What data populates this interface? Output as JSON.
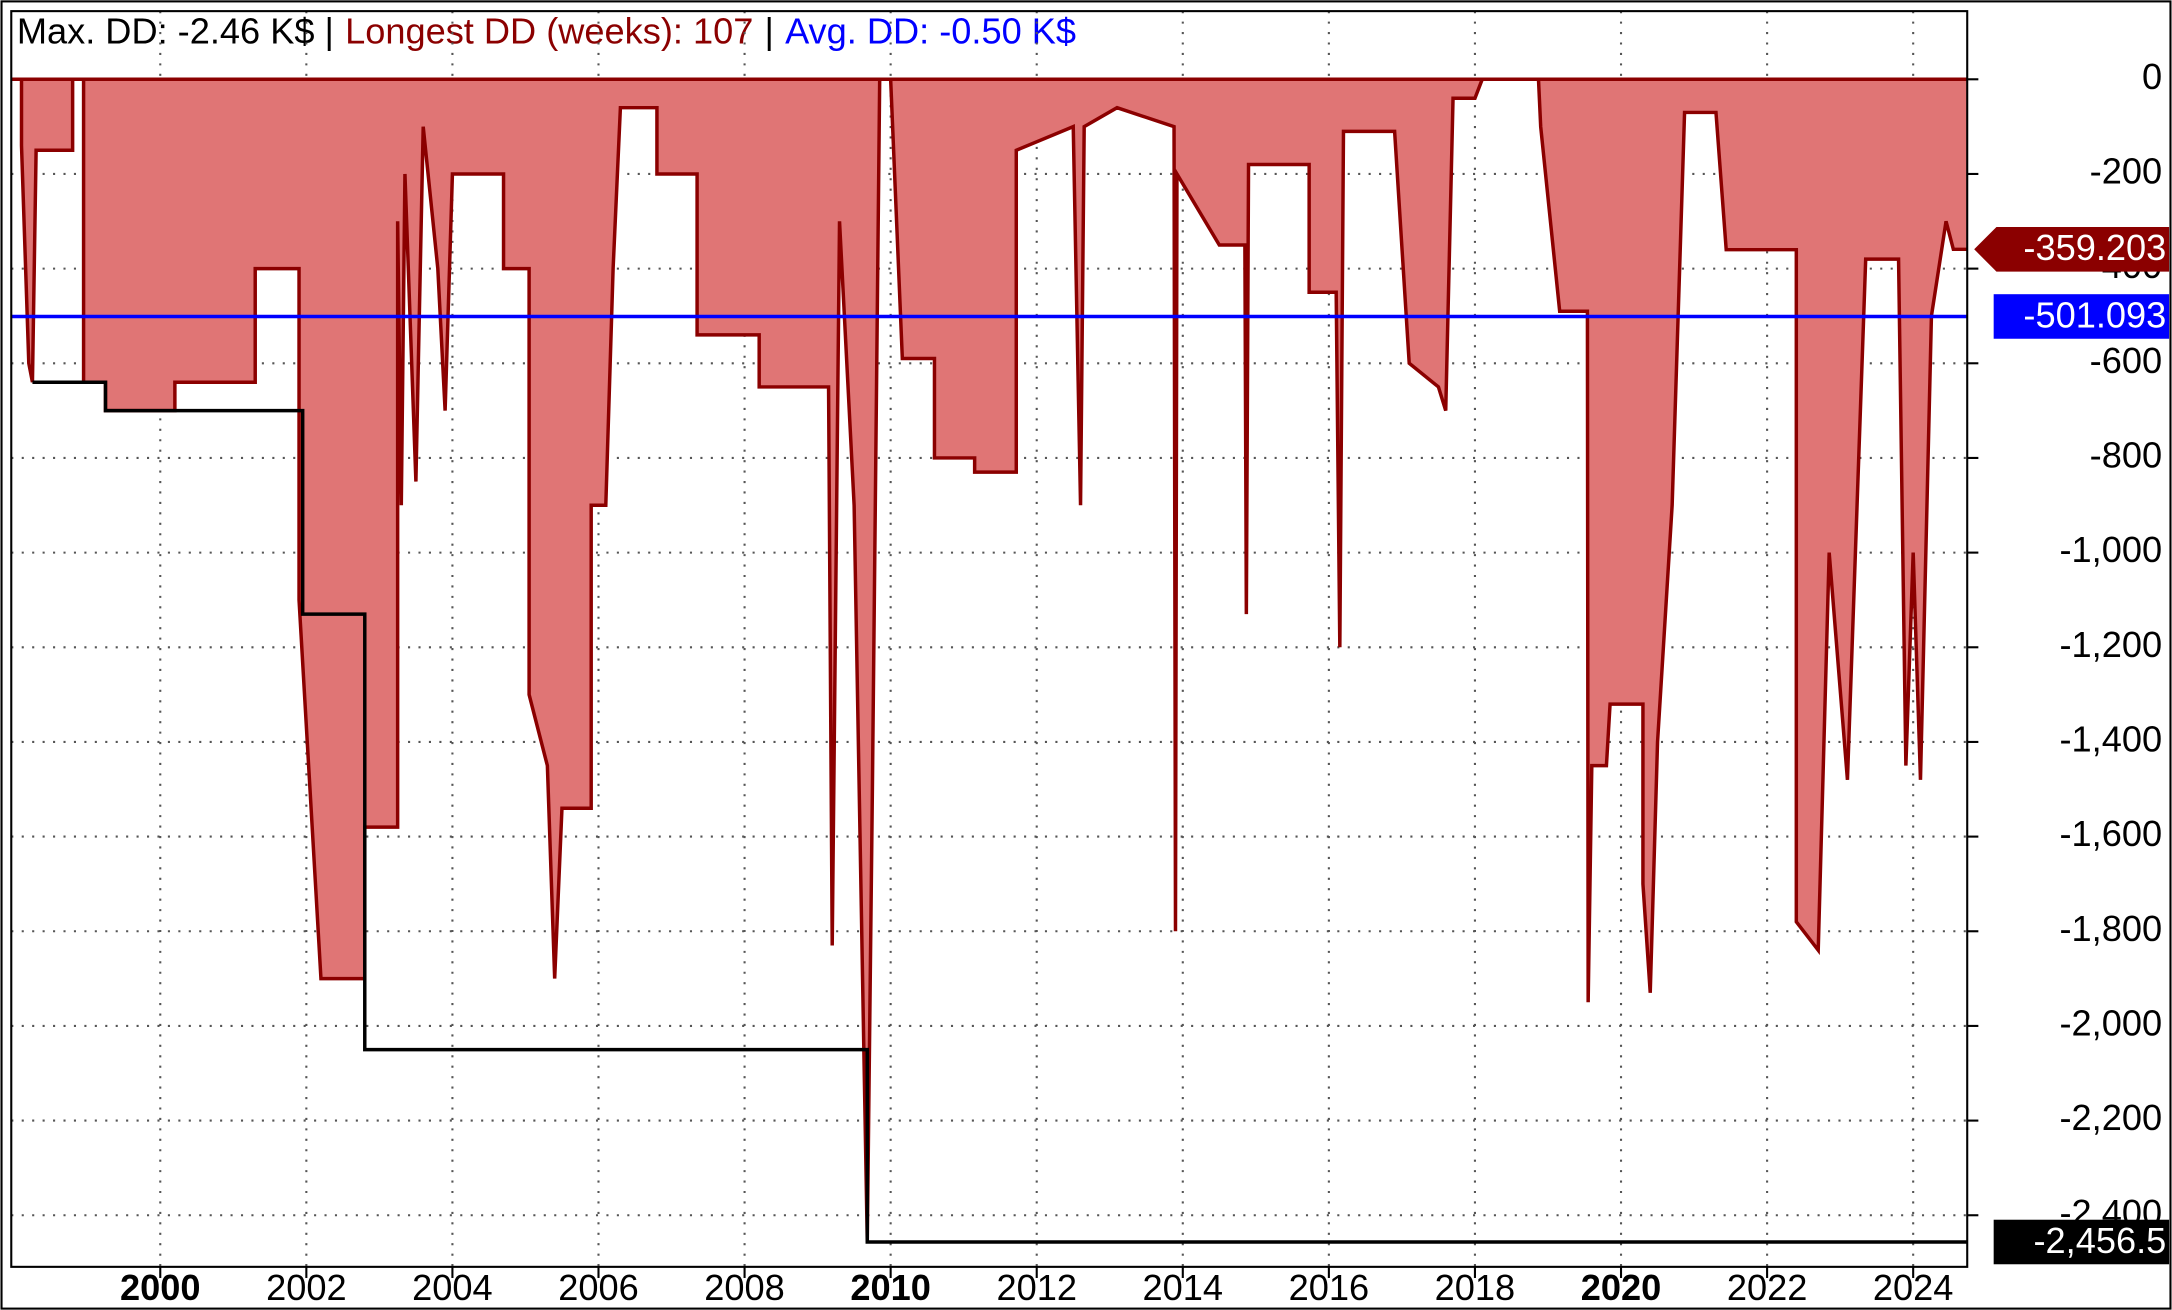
{
  "chart_data": {
    "type": "area",
    "title_parts": [
      {
        "text": "Max. DD: -2.46 K$ |",
        "color": "#000000"
      },
      {
        "text": "Longest DD (weeks): 107",
        "color": "#8b0000"
      },
      {
        "text": "|",
        "color": "#000000"
      },
      {
        "text": "Avg. DD: -0.50 K$",
        "color": "#0000ff"
      }
    ],
    "xlim": [
      1997.96,
      2024.74
    ],
    "xticks": [
      2000,
      2002,
      2004,
      2006,
      2008,
      2010,
      2012,
      2014,
      2016,
      2018,
      2020,
      2022,
      2024
    ],
    "ylim": [
      -2509,
      144
    ],
    "yticks": [
      0,
      -200,
      -400,
      -600,
      -800,
      {
        "value": -1000,
        "label": "-1,000"
      },
      {
        "value": -1200,
        "label": "-1,200"
      },
      {
        "value": -1400,
        "label": "-1,400"
      },
      {
        "value": -1600,
        "label": "-1,600"
      },
      {
        "value": -1800,
        "label": "-1,800"
      },
      {
        "value": -2000,
        "label": "-2,000"
      },
      {
        "value": -2200,
        "label": "-2,200"
      },
      {
        "value": -2400,
        "label": "-2,400"
      }
    ],
    "grid": true,
    "series": [
      {
        "color": "#8b0000",
        "fill": "#e07575",
        "x": [
          1997.96,
          1998.1,
          1998.1,
          1998.2,
          1998.25,
          1998.3,
          1998.8,
          1998.8,
          1998.95,
          1998.95,
          1999.25,
          1999.25,
          2000.2,
          2000.2,
          2001.3,
          2001.3,
          2001.9,
          2001.9,
          2002.2,
          2002.8,
          2002.8,
          2003.25,
          2003.25,
          2003.3,
          2003.35,
          2003.5,
          2003.6,
          2003.8,
          2003.9,
          2004.0,
          2004.7,
          2004.7,
          2005.05,
          2005.05,
          2005.3,
          2005.4,
          2005.5,
          2005.9,
          2005.9,
          2006.1,
          2006.2,
          2006.3,
          2006.8,
          2006.8,
          2007.35,
          2007.35,
          2008.2,
          2008.2,
          2009.15,
          2009.2,
          2009.3,
          2009.5,
          2009.68,
          2009.75,
          2009.85,
          2010.0,
          2010.16,
          2010.6,
          2010.6,
          2011.15,
          2011.15,
          2011.72,
          2011.72,
          2012.5,
          2012.6,
          2012.65,
          2013.1,
          2013.88,
          2013.9,
          2013.92,
          2014.5,
          2014.85,
          2014.87,
          2014.9,
          2015.73,
          2015.73,
          2016.1,
          2016.15,
          2016.2,
          2016.9,
          2017.1,
          2017.5,
          2017.6,
          2017.7,
          2018.0,
          2018.1,
          2018.87,
          2018.9,
          2019.16,
          2019.54,
          2019.55,
          2019.6,
          2019.8,
          2019.85,
          2020.3,
          2020.3,
          2020.4,
          2020.5,
          2020.7,
          2020.87,
          2021.3,
          2021.44,
          2022.4,
          2022.4,
          2022.7,
          2022.85,
          2023.1,
          2023.35,
          2023.8,
          2023.9,
          2024.0,
          2024.1,
          2024.25,
          2024.45,
          2024.55,
          2024.74
        ],
        "values": [
          0,
          0,
          -140,
          -600,
          -640,
          -150,
          -150,
          0,
          0,
          -640,
          -640,
          -700,
          -700,
          -640,
          -640,
          -400,
          -400,
          -1100,
          -1900,
          -1900,
          -1580,
          -1580,
          -300,
          -900,
          -200,
          -850,
          -100,
          -400,
          -700,
          -200,
          -200,
          -400,
          -400,
          -1300,
          -1450,
          -1900,
          -1540,
          -1540,
          -900,
          -900,
          -400,
          -60,
          -60,
          -200,
          -200,
          -540,
          -540,
          -650,
          -650,
          -1830,
          -300,
          -900,
          -2456.5,
          -1500,
          0,
          0,
          -590,
          -590,
          -800,
          -800,
          -830,
          -830,
          -150,
          -100,
          -900,
          -100,
          -60,
          -100,
          -1800,
          -200,
          -350,
          -350,
          -1130,
          -180,
          -180,
          -450,
          -450,
          -1200,
          -110,
          -110,
          -600,
          -650,
          -700,
          -40,
          -40,
          0,
          0,
          -100,
          -490,
          -490,
          -1950,
          -1450,
          -1450,
          -1320,
          -1320,
          -1700,
          -1930,
          -1400,
          -900,
          -70,
          -70,
          -360,
          -360,
          -1780,
          -1840,
          -1000,
          -1480,
          -380,
          -380,
          -1450,
          -1000,
          -1480,
          -500,
          -300,
          -359.203,
          -359.203
        ]
      },
      {
        "color": "#000000",
        "x": [
          1998.25,
          1999.25,
          1999.25,
          2001.95,
          2001.95,
          2002.8,
          2002.8,
          2009.68,
          2009.68,
          2024.74
        ],
        "values": [
          -640,
          -640,
          -700,
          -700,
          -1130,
          -1130,
          -2050,
          -2050,
          -2456.5,
          -2456.5
        ]
      }
    ],
    "markers": [
      {
        "value": -359.203,
        "label": "-359.203",
        "color": "#8b0000",
        "shape": "arrow"
      },
      {
        "value": -501.093,
        "label": "-501.093",
        "color": "#0000ff",
        "shape": "box",
        "line": true
      },
      {
        "value": -2456.5,
        "label": "-2,456.5",
        "color": "#000000",
        "shape": "box"
      }
    ]
  }
}
